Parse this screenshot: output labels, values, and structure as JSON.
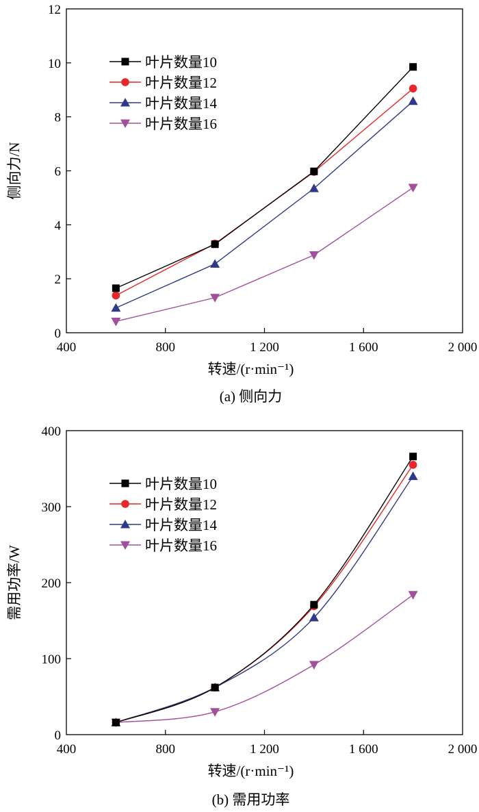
{
  "chart_data": [
    {
      "type": "line",
      "caption": "(a) 侧向力",
      "xlabel": "转速/(r·min⁻¹)",
      "ylabel": "侧向力/N",
      "xlim": [
        400,
        2000
      ],
      "ylim": [
        0,
        12
      ],
      "xticks": [
        400,
        800,
        1200,
        1600,
        2000
      ],
      "xtick_labels": [
        "400",
        "800",
        "1 200",
        "1 600",
        "2 000"
      ],
      "yticks": [
        0,
        2,
        4,
        6,
        8,
        10,
        12
      ],
      "ytick_labels": [
        "0",
        "2",
        "4",
        "6",
        "8",
        "10",
        "12"
      ],
      "legend_position": "top-left",
      "x": [
        600,
        1000,
        1400,
        1800
      ],
      "smooth": false,
      "series": [
        {
          "name": "叶片数量10",
          "color": "#000000",
          "marker": "square",
          "values": [
            1.65,
            3.28,
            5.98,
            9.85
          ]
        },
        {
          "name": "叶片数量12",
          "color": "#e8272a",
          "marker": "circle",
          "values": [
            1.38,
            3.3,
            5.96,
            9.05
          ]
        },
        {
          "name": "叶片数量14",
          "color": "#2e3a87",
          "marker": "triangle-up",
          "values": [
            0.92,
            2.55,
            5.35,
            8.58
          ]
        },
        {
          "name": "叶片数量16",
          "color": "#a2509c",
          "marker": "triangle-down",
          "values": [
            0.42,
            1.3,
            2.88,
            5.38
          ]
        }
      ]
    },
    {
      "type": "line",
      "caption": "(b) 需用功率",
      "xlabel": "转速/(r·min⁻¹)",
      "ylabel": "需用功率/W",
      "xlim": [
        400,
        2000
      ],
      "ylim": [
        0,
        400
      ],
      "xticks": [
        400,
        800,
        1200,
        1600,
        2000
      ],
      "xtick_labels": [
        "400",
        "800",
        "1 200",
        "1 600",
        "2 000"
      ],
      "yticks": [
        0,
        100,
        200,
        300,
        400
      ],
      "ytick_labels": [
        "0",
        "100",
        "200",
        "300",
        "400"
      ],
      "legend_position": "top-left",
      "x": [
        600,
        1000,
        1400,
        1800
      ],
      "smooth": true,
      "series": [
        {
          "name": "叶片数量10",
          "color": "#000000",
          "marker": "square",
          "values": [
            16,
            62,
            171,
            366
          ]
        },
        {
          "name": "叶片数量12",
          "color": "#e8272a",
          "marker": "circle",
          "values": [
            16,
            62,
            169,
            355
          ]
        },
        {
          "name": "叶片数量14",
          "color": "#2e3a87",
          "marker": "triangle-up",
          "values": [
            16,
            62,
            154,
            340
          ]
        },
        {
          "name": "叶片数量16",
          "color": "#a2509c",
          "marker": "triangle-down",
          "values": [
            16,
            30,
            92,
            184
          ]
        }
      ]
    }
  ]
}
